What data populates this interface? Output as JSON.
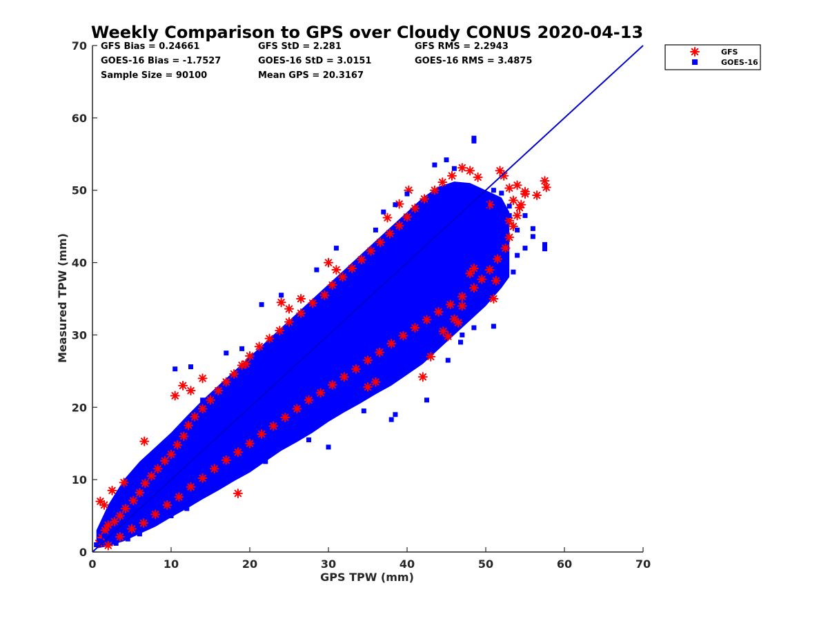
{
  "chart_data": {
    "type": "scatter",
    "title": "Weekly Comparison to GPS over Cloudy CONUS 2020-04-13",
    "xlabel": "GPS TPW (mm)",
    "ylabel": "Measured TPW (mm)",
    "xlim": [
      0,
      70
    ],
    "ylim": [
      0,
      70
    ],
    "xticks": [
      "0",
      "10",
      "20",
      "30",
      "40",
      "50",
      "60",
      "70"
    ],
    "yticks": [
      "0",
      "10",
      "20",
      "30",
      "40",
      "50",
      "60",
      "70"
    ],
    "grid": false,
    "legend_position": "outside-top-right",
    "stats": [
      [
        "GFS Bias = 0.24661",
        "GFS StD = 2.281",
        "GFS RMS = 2.2943"
      ],
      [
        "GOES-16 Bias = -1.7527",
        "GOES-16 StD = 3.0151",
        "GOES-16 RMS = 3.4875"
      ],
      [
        "Sample Size = 90100",
        "Mean GPS = 20.3167",
        ""
      ]
    ],
    "reference_line": {
      "x": [
        0,
        70
      ],
      "y": [
        0,
        70
      ],
      "color": "#0000cc"
    },
    "series": [
      {
        "name": "GFS",
        "marker": "asterisk",
        "color": "#ff0000",
        "points": [
          [
            0.8,
            1.2
          ],
          [
            1.2,
            2.0
          ],
          [
            1.6,
            3.0
          ],
          [
            2.0,
            3.7
          ],
          [
            2.8,
            4.2
          ],
          [
            3.5,
            5.0
          ],
          [
            4.2,
            6.0
          ],
          [
            5.2,
            7.1
          ],
          [
            6.0,
            8.2
          ],
          [
            6.7,
            9.5
          ],
          [
            7.5,
            10.5
          ],
          [
            8.3,
            11.5
          ],
          [
            9.2,
            12.6
          ],
          [
            10.0,
            13.5
          ],
          [
            10.8,
            14.8
          ],
          [
            11.6,
            16.0
          ],
          [
            12.2,
            17.5
          ],
          [
            13.0,
            18.7
          ],
          [
            14.0,
            19.8
          ],
          [
            15.0,
            21.0
          ],
          [
            16.0,
            22.3
          ],
          [
            17.0,
            23.5
          ],
          [
            18.0,
            24.6
          ],
          [
            19.0,
            25.8
          ],
          [
            20.0,
            27.1
          ],
          [
            21.2,
            28.4
          ],
          [
            22.5,
            29.5
          ],
          [
            23.8,
            30.6
          ],
          [
            25.0,
            31.8
          ],
          [
            26.5,
            33.0
          ],
          [
            28.0,
            34.4
          ],
          [
            29.5,
            35.5
          ],
          [
            30.5,
            36.9
          ],
          [
            31.8,
            38.0
          ],
          [
            33.0,
            39.2
          ],
          [
            34.2,
            40.4
          ],
          [
            35.4,
            41.6
          ],
          [
            36.6,
            42.8
          ],
          [
            37.8,
            44.0
          ],
          [
            39.0,
            45.1
          ],
          [
            40.0,
            46.3
          ],
          [
            41.0,
            47.5
          ],
          [
            42.2,
            48.8
          ],
          [
            43.5,
            50.0
          ],
          [
            44.5,
            51.1
          ],
          [
            45.7,
            52.0
          ],
          [
            47.0,
            53.1
          ],
          [
            48.0,
            52.7
          ],
          [
            49.0,
            51.8
          ],
          [
            2.0,
            0.9
          ],
          [
            3.5,
            2.1
          ],
          [
            5.0,
            3.2
          ],
          [
            6.5,
            4.0
          ],
          [
            8.0,
            5.2
          ],
          [
            9.5,
            6.5
          ],
          [
            11.0,
            7.6
          ],
          [
            12.5,
            9.0
          ],
          [
            14.0,
            10.2
          ],
          [
            15.5,
            11.5
          ],
          [
            17.0,
            12.7
          ],
          [
            18.5,
            13.8
          ],
          [
            20.0,
            15.0
          ],
          [
            21.5,
            16.3
          ],
          [
            23.0,
            17.4
          ],
          [
            24.5,
            18.6
          ],
          [
            26.0,
            19.8
          ],
          [
            27.5,
            21.0
          ],
          [
            29.0,
            22.0
          ],
          [
            30.5,
            23.1
          ],
          [
            32.0,
            24.2
          ],
          [
            33.5,
            25.3
          ],
          [
            35.0,
            26.5
          ],
          [
            36.5,
            27.6
          ],
          [
            38.0,
            28.8
          ],
          [
            39.5,
            29.9
          ],
          [
            41.0,
            31.0
          ],
          [
            42.5,
            32.1
          ],
          [
            44.0,
            33.2
          ],
          [
            45.5,
            34.2
          ],
          [
            47.0,
            35.3
          ],
          [
            48.5,
            36.5
          ],
          [
            49.5,
            37.7
          ],
          [
            50.5,
            39.0
          ],
          [
            51.5,
            40.5
          ],
          [
            52.5,
            42.0
          ],
          [
            53.0,
            43.5
          ],
          [
            53.5,
            45.0
          ],
          [
            54.0,
            46.5
          ],
          [
            54.5,
            48.0
          ],
          [
            55.0,
            49.5
          ],
          [
            1.0,
            7.0
          ],
          [
            1.5,
            6.5
          ],
          [
            2.5,
            8.5
          ],
          [
            4.0,
            9.6
          ],
          [
            6.6,
            15.3
          ],
          [
            10.5,
            21.6
          ],
          [
            11.5,
            23.0
          ],
          [
            12.5,
            22.3
          ],
          [
            14.0,
            24.0
          ],
          [
            18.5,
            8.1
          ],
          [
            19.5,
            26.0
          ],
          [
            24.0,
            34.5
          ],
          [
            25.0,
            33.6
          ],
          [
            26.5,
            35.0
          ],
          [
            30.0,
            40.0
          ],
          [
            31.0,
            39.0
          ],
          [
            35.0,
            22.8
          ],
          [
            36.0,
            23.5
          ],
          [
            37.5,
            46.2
          ],
          [
            39.0,
            48.1
          ],
          [
            40.2,
            50.0
          ],
          [
            42.0,
            24.2
          ],
          [
            43.0,
            27.0
          ],
          [
            44.6,
            30.5
          ],
          [
            45.2,
            29.8
          ],
          [
            46.0,
            32.2
          ],
          [
            46.5,
            31.7
          ],
          [
            47.0,
            34.0
          ],
          [
            48.0,
            38.5
          ],
          [
            48.5,
            39.2
          ],
          [
            51.0,
            35.0
          ],
          [
            51.3,
            37.5
          ],
          [
            51.8,
            52.7
          ],
          [
            52.3,
            52.0
          ],
          [
            53.0,
            50.3
          ],
          [
            53.5,
            48.6
          ],
          [
            54.0,
            50.7
          ],
          [
            54.3,
            47.6
          ],
          [
            55.0,
            49.8
          ],
          [
            56.5,
            49.3
          ],
          [
            57.5,
            51.3
          ],
          [
            57.7,
            50.4
          ],
          [
            53.0,
            45.8
          ],
          [
            50.5,
            48.0
          ]
        ]
      },
      {
        "name": "GOES-16",
        "marker": "square",
        "color": "#0000ff",
        "points": [
          [
            0.5,
            1.0
          ],
          [
            1.0,
            1.5
          ],
          [
            1.5,
            2.2
          ],
          [
            2.0,
            2.0
          ],
          [
            2.5,
            2.8
          ],
          [
            3.0,
            3.1
          ],
          [
            3.5,
            3.5
          ],
          [
            4.0,
            4.0
          ],
          [
            4.5,
            4.5
          ],
          [
            5.0,
            5.1
          ],
          [
            5.5,
            5.2
          ],
          [
            6.0,
            5.9
          ],
          [
            6.5,
            6.3
          ],
          [
            7.0,
            7.0
          ],
          [
            7.5,
            7.5
          ],
          [
            8.0,
            7.8
          ],
          [
            8.5,
            8.5
          ],
          [
            9.0,
            8.8
          ],
          [
            9.5,
            9.5
          ],
          [
            10.0,
            10.0
          ],
          [
            11.0,
            10.6
          ],
          [
            12.0,
            11.6
          ],
          [
            13.0,
            12.4
          ],
          [
            14.0,
            13.4
          ],
          [
            15.0,
            14.4
          ],
          [
            16.0,
            15.3
          ],
          [
            17.0,
            16.2
          ],
          [
            18.0,
            17.0
          ],
          [
            19.0,
            18.0
          ],
          [
            20.0,
            18.7
          ],
          [
            21.0,
            19.9
          ],
          [
            22.0,
            20.6
          ],
          [
            23.0,
            21.7
          ],
          [
            24.0,
            22.4
          ],
          [
            25.0,
            23.1
          ],
          [
            26.0,
            24.5
          ],
          [
            27.0,
            25.3
          ],
          [
            28.0,
            26.0
          ],
          [
            29.0,
            27.3
          ],
          [
            30.0,
            28.0
          ],
          [
            31.0,
            29.1
          ],
          [
            32.0,
            30.0
          ],
          [
            33.0,
            31.1
          ],
          [
            34.0,
            32.3
          ],
          [
            35.0,
            33.2
          ],
          [
            36.0,
            34.0
          ],
          [
            37.0,
            35.2
          ],
          [
            38.0,
            36.0
          ],
          [
            39.0,
            37.1
          ],
          [
            40.0,
            38.0
          ],
          [
            41.0,
            39.1
          ],
          [
            42.0,
            40.0
          ],
          [
            43.0,
            41.1
          ],
          [
            44.0,
            42.0
          ],
          [
            45.0,
            43.0
          ],
          [
            46.0,
            44.1
          ],
          [
            47.0,
            45.0
          ],
          [
            48.0,
            46.0
          ],
          [
            49.0,
            47.0
          ],
          [
            50.0,
            48.0
          ],
          [
            51.0,
            49.0
          ],
          [
            52.0,
            49.6
          ],
          [
            53.0,
            46.5
          ],
          [
            54.0,
            44.5
          ],
          [
            55.0,
            42.0
          ],
          [
            10.5,
            25.3
          ],
          [
            12.5,
            25.6
          ],
          [
            14.0,
            21.0
          ],
          [
            17.0,
            27.5
          ],
          [
            19.0,
            28.1
          ],
          [
            21.5,
            34.2
          ],
          [
            24.0,
            35.5
          ],
          [
            28.5,
            39.0
          ],
          [
            31.0,
            42.0
          ],
          [
            36.0,
            44.5
          ],
          [
            37.0,
            47.0
          ],
          [
            38.5,
            48.0
          ],
          [
            40.0,
            49.5
          ],
          [
            43.5,
            53.5
          ],
          [
            45.0,
            54.2
          ],
          [
            46.0,
            53.0
          ],
          [
            48.5,
            56.8
          ],
          [
            48.5,
            57.2
          ],
          [
            51.0,
            50.0
          ],
          [
            53.0,
            47.8
          ],
          [
            55.0,
            46.5
          ],
          [
            56.0,
            44.7
          ],
          [
            56.0,
            43.6
          ],
          [
            57.5,
            42.5
          ],
          [
            57.5,
            41.9
          ],
          [
            54.0,
            41.0
          ],
          [
            52.5,
            40.0
          ],
          [
            53.5,
            38.7
          ],
          [
            50.5,
            36.0
          ],
          [
            51.0,
            31.2
          ],
          [
            48.5,
            31.0
          ],
          [
            47.0,
            30.0
          ],
          [
            46.8,
            29.0
          ],
          [
            45.2,
            26.5
          ],
          [
            42.5,
            21.0
          ],
          [
            38.5,
            19.0
          ],
          [
            38.0,
            18.3
          ],
          [
            34.5,
            19.5
          ],
          [
            30.0,
            14.5
          ],
          [
            27.5,
            15.5
          ],
          [
            22.0,
            12.5
          ],
          [
            20.0,
            12.0
          ],
          [
            18.5,
            11.0
          ],
          [
            15.0,
            8.5
          ],
          [
            12.0,
            6.0
          ],
          [
            10.0,
            5.0
          ],
          [
            8.0,
            4.0
          ],
          [
            6.0,
            2.5
          ],
          [
            4.5,
            1.8
          ],
          [
            3.0,
            1.2
          ]
        ]
      }
    ],
    "density_band": {
      "color": "#0000ff",
      "x": [
        0.5,
        2,
        4,
        6,
        8,
        10,
        12,
        14,
        16,
        18,
        20,
        22,
        24,
        26,
        28,
        30,
        32,
        34,
        36,
        38,
        40,
        42,
        44,
        46,
        48,
        50,
        52,
        53
      ],
      "y_low": [
        0.5,
        0.8,
        1.5,
        2.5,
        3.5,
        4.8,
        6.0,
        7.3,
        8.5,
        9.8,
        11.0,
        12.5,
        14.0,
        15.2,
        16.5,
        18.0,
        19.3,
        20.5,
        21.8,
        23.0,
        24.5,
        26.0,
        28.0,
        30.0,
        32.0,
        34.0,
        36.5,
        38.0
      ],
      "y_high": [
        3.0,
        6.5,
        10.0,
        12.5,
        14.5,
        16.5,
        18.8,
        21.0,
        23.0,
        25.0,
        27.0,
        29.0,
        31.0,
        33.0,
        35.0,
        37.0,
        39.0,
        41.0,
        43.0,
        45.0,
        47.0,
        49.0,
        50.5,
        51.2,
        51.0,
        50.0,
        49.0,
        47.0
      ]
    }
  }
}
